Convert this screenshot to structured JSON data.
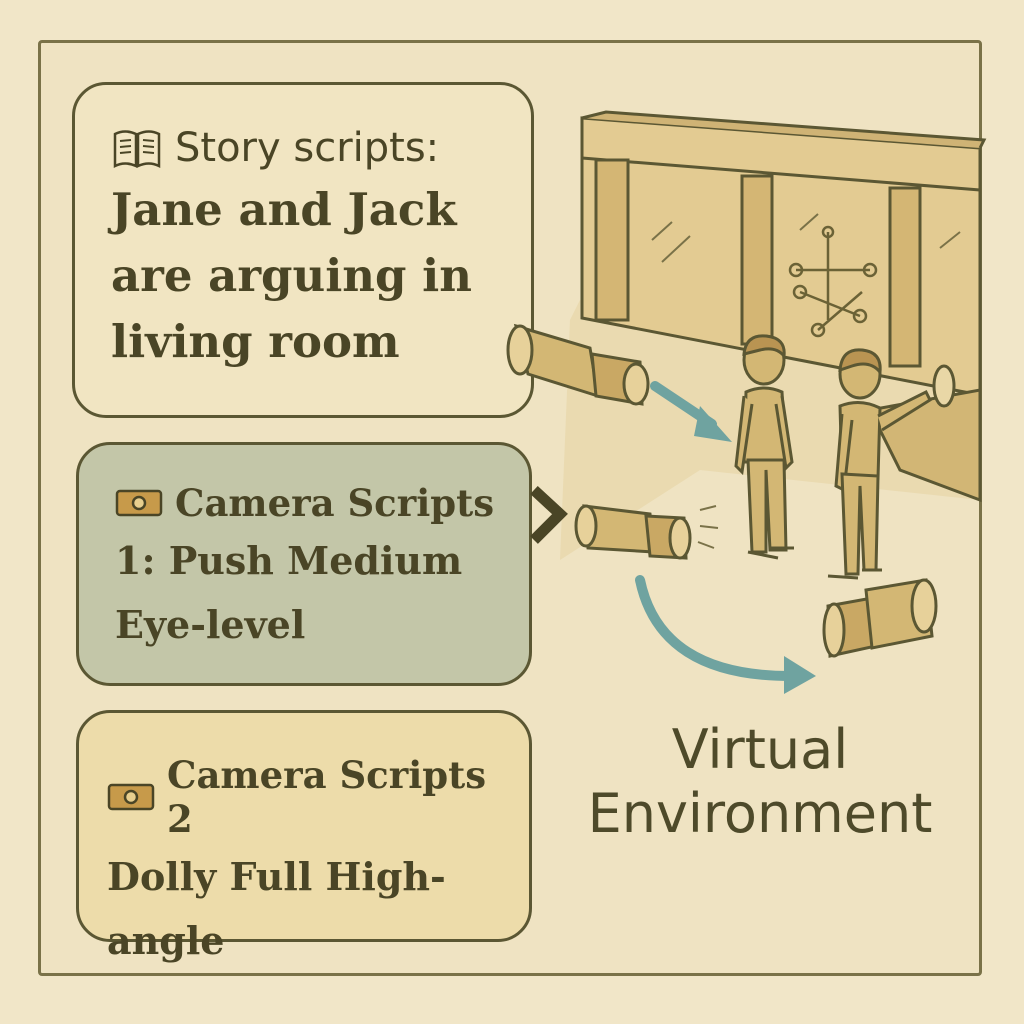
{
  "story": {
    "heading": "Story scripts:",
    "text": "Jane and Jack are arguing in living room",
    "icon": "book-icon"
  },
  "camera_scripts": [
    {
      "heading": "Camera Scripts",
      "text": "1: Push Medium Eye-level",
      "icon": "camera-icon"
    },
    {
      "heading": "Camera Scripts 2",
      "text": "Dolly Full High-angle",
      "icon": "camera-icon"
    }
  ],
  "environment": {
    "label": "Virtual Environment"
  },
  "colors": {
    "background": "#f1e6c8",
    "outline": "#5b5733",
    "story_card": "#f1e5c2",
    "camera1_card": "#c3c6a8",
    "camera2_card": "#eddcaa",
    "arrow": "#6fa3a0",
    "figure": "#d3b774"
  }
}
